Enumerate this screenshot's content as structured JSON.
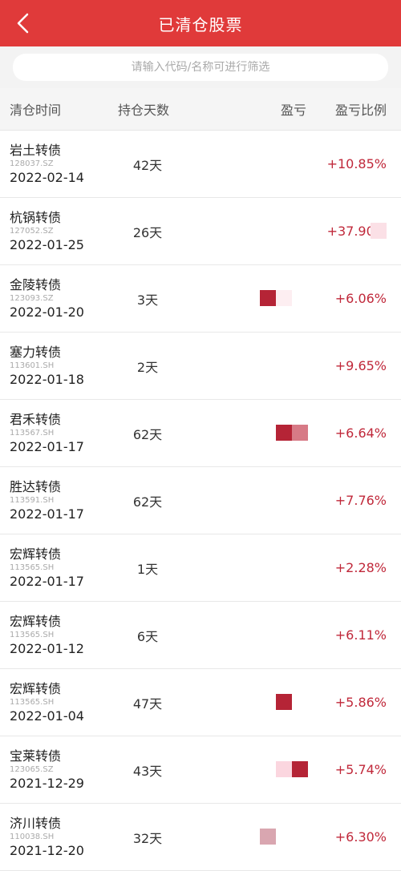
{
  "header": {
    "title": "已清仓股票",
    "back_icon": "chevron-left-icon"
  },
  "search": {
    "placeholder": "请输入代码/名称可进行筛选"
  },
  "columns": {
    "time": "清仓时间",
    "days": "持仓天数",
    "pl": "盈亏",
    "ratio": "盈亏比例"
  },
  "colors": {
    "header_bg": "#e03a3a",
    "profit": "#c0283a"
  },
  "rows": [
    {
      "name": "岩土转债",
      "code": "128037.SZ",
      "date": "2022-02-14",
      "days": "42天",
      "ratio": "+10.85%",
      "blocks": []
    },
    {
      "name": "杭锅转债",
      "code": "127052.SZ",
      "date": "2022-01-25",
      "days": "26天",
      "ratio": "+37.90%",
      "blocks": [
        "#fbe0e6"
      ]
    },
    {
      "name": "金陵转债",
      "code": "123093.SZ",
      "date": "2022-01-20",
      "days": "3天",
      "ratio": "+6.06%",
      "blocks": [
        "#b52436",
        "#fdeef1"
      ]
    },
    {
      "name": "塞力转债",
      "code": "113601.SH",
      "date": "2022-01-18",
      "days": "2天",
      "ratio": "+9.65%",
      "blocks": []
    },
    {
      "name": "君禾转债",
      "code": "113567.SH",
      "date": "2022-01-17",
      "days": "62天",
      "ratio": "+6.64%",
      "blocks": [
        "#b52436",
        "#d77a86"
      ]
    },
    {
      "name": "胜达转债",
      "code": "113591.SH",
      "date": "2022-01-17",
      "days": "62天",
      "ratio": "+7.76%",
      "blocks": []
    },
    {
      "name": "宏辉转债",
      "code": "113565.SH",
      "date": "2022-01-17",
      "days": "1天",
      "ratio": "+2.28%",
      "blocks": []
    },
    {
      "name": "宏辉转债",
      "code": "113565.SH",
      "date": "2022-01-12",
      "days": "6天",
      "ratio": "+6.11%",
      "blocks": []
    },
    {
      "name": "宏辉转债",
      "code": "113565.SH",
      "date": "2022-01-04",
      "days": "47天",
      "ratio": "+5.86%",
      "blocks": [
        "#b52436"
      ]
    },
    {
      "name": "宝莱转债",
      "code": "123065.SZ",
      "date": "2021-12-29",
      "days": "43天",
      "ratio": "+5.74%",
      "blocks": [
        "#fbd6df",
        "#b52436"
      ]
    },
    {
      "name": "济川转债",
      "code": "110038.SH",
      "date": "2021-12-20",
      "days": "32天",
      "ratio": "+6.30%",
      "blocks": [
        "#d9a6b0"
      ]
    }
  ]
}
